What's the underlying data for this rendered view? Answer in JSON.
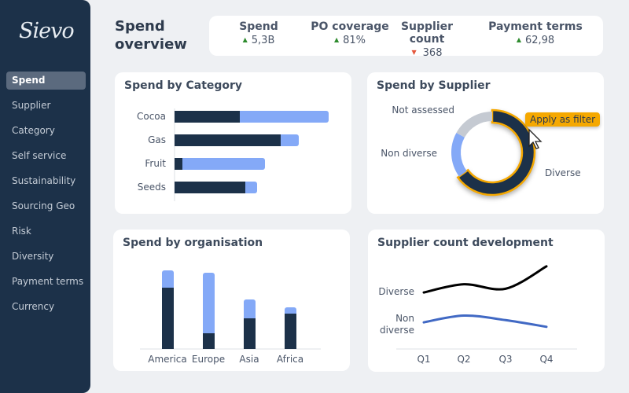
{
  "sidebar": {
    "logo": "Sievo",
    "items": [
      "Spend",
      "Supplier",
      "Category",
      "Self service",
      "Sustainability",
      "Sourcing Geo",
      "Risk",
      "Diversity",
      "Payment terms",
      "Currency"
    ],
    "active": "Spend"
  },
  "header": {
    "title_line1": "Spend",
    "title_line2": "overview"
  },
  "kpis": [
    {
      "label": "Spend",
      "value": "5,3B",
      "trend": "up"
    },
    {
      "label": "PO coverage",
      "value": "81%",
      "trend": "up"
    },
    {
      "label": "Supplier count",
      "value": "368",
      "trend": "down"
    },
    {
      "label": "Payment terms",
      "value": "62,98",
      "trend": "up"
    }
  ],
  "colors": {
    "dark": "#1c3149",
    "light": "#84a9f7",
    "grey": "#c5cad2",
    "highlight": "#f5a800",
    "up": "#2e8b2e",
    "down": "#e4573d",
    "line_diverse": "#000000",
    "line_non_diverse": "#4169c4"
  },
  "tooltip": {
    "label": "Apply as filter"
  },
  "chart_data": [
    {
      "id": "category",
      "type": "bar",
      "orientation": "horizontal",
      "stacked": true,
      "title": "Spend by Category",
      "categories": [
        "Cocoa",
        "Gas",
        "Fruit",
        "Seeds"
      ],
      "series": [
        {
          "values": [
            83,
            135,
            10,
            90
          ]
        },
        {
          "values": [
            113,
            23,
            105,
            15
          ]
        }
      ]
    },
    {
      "id": "supplier",
      "type": "pie",
      "donut": true,
      "title": "Spend by Supplier",
      "categories": [
        "Diverse",
        "Non diverse",
        "Not assessed"
      ],
      "values": [
        65,
        18,
        17
      ],
      "highlighted": "Diverse"
    },
    {
      "id": "organisation",
      "type": "bar",
      "stacked": true,
      "title": "Spend by organisation",
      "categories": [
        "America",
        "Europe",
        "Asia",
        "Africa"
      ],
      "series": [
        {
          "values": [
            78,
            20,
            39,
            45
          ]
        },
        {
          "values": [
            22,
            77,
            24,
            8
          ]
        }
      ]
    },
    {
      "id": "supplier_count",
      "type": "line",
      "title": "Supplier count development",
      "categories": [
        "Q1",
        "Q2",
        "Q3",
        "Q4"
      ],
      "series": [
        {
          "name": "Diverse",
          "values": [
            62,
            73,
            67,
            97
          ]
        },
        {
          "name": "Non diverse",
          "values": [
            22,
            31,
            25,
            16
          ]
        }
      ]
    }
  ]
}
